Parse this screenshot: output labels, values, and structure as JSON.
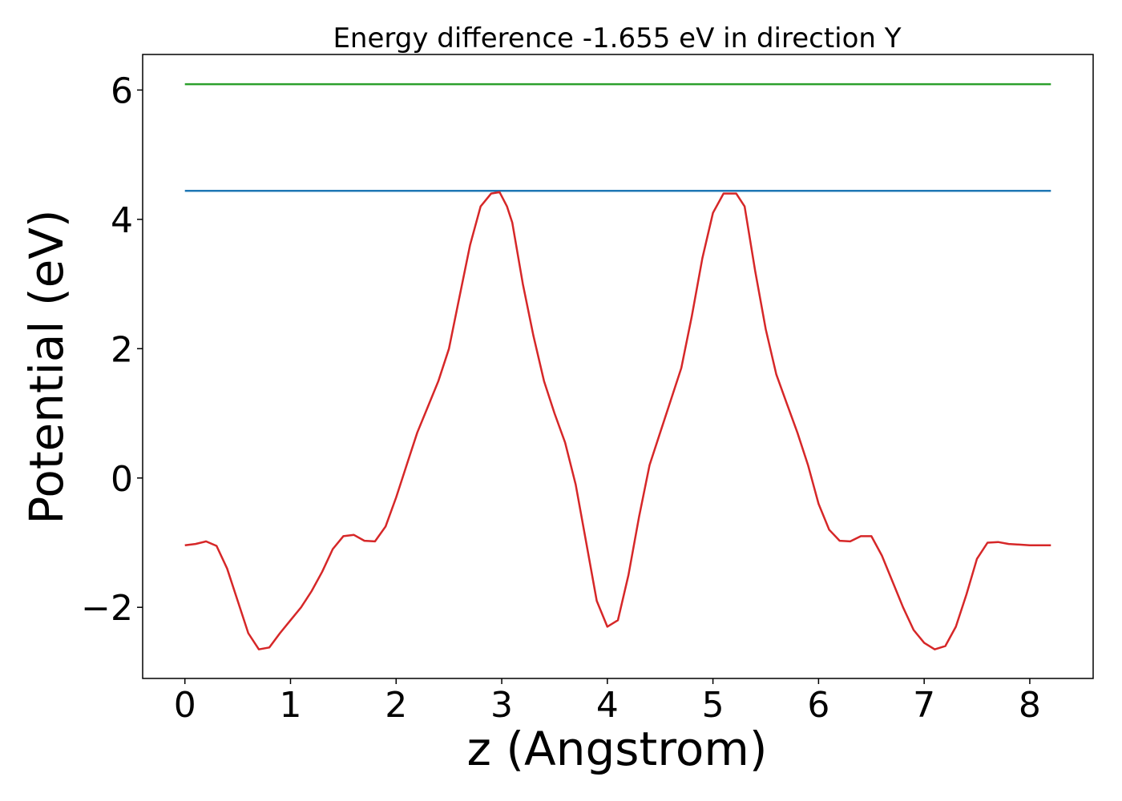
{
  "chart_data": {
    "type": "line",
    "title": "Energy difference -1.655 eV in direction Y",
    "xlabel": "z (Angstrom)",
    "ylabel": "Potential (eV)",
    "xlim": [
      -0.4,
      8.6
    ],
    "ylim": [
      -3.1,
      6.55
    ],
    "xticks": [
      0,
      1,
      2,
      3,
      4,
      5,
      6,
      7,
      8
    ],
    "xtick_labels": [
      "0",
      "1",
      "2",
      "3",
      "4",
      "5",
      "6",
      "7",
      "8"
    ],
    "yticks": [
      -2,
      0,
      2,
      4,
      6
    ],
    "ytick_labels": [
      "−2",
      "0",
      "2",
      "4",
      "6"
    ],
    "grid": false,
    "legend": "none",
    "series": [
      {
        "color": "#2ca02c",
        "x": [
          0.0,
          8.2
        ],
        "y": [
          6.09,
          6.09
        ]
      },
      {
        "color": "#1f77b4",
        "x": [
          0.0,
          8.2
        ],
        "y": [
          4.44,
          4.44
        ]
      },
      {
        "color": "#d62728",
        "x": [
          0.0,
          0.1,
          0.2,
          0.3,
          0.4,
          0.5,
          0.6,
          0.7,
          0.8,
          0.9,
          1.0,
          1.1,
          1.2,
          1.3,
          1.4,
          1.5,
          1.6,
          1.7,
          1.8,
          1.9,
          2.0,
          2.1,
          2.2,
          2.3,
          2.4,
          2.5,
          2.6,
          2.7,
          2.8,
          2.9,
          2.98,
          3.05,
          3.1,
          3.2,
          3.3,
          3.4,
          3.5,
          3.6,
          3.7,
          3.8,
          3.9,
          4.0,
          4.1,
          4.2,
          4.3,
          4.4,
          4.5,
          4.6,
          4.7,
          4.8,
          4.9,
          5.0,
          5.1,
          5.22,
          5.3,
          5.4,
          5.5,
          5.6,
          5.7,
          5.8,
          5.9,
          6.0,
          6.1,
          6.2,
          6.3,
          6.4,
          6.5,
          6.6,
          6.7,
          6.8,
          6.9,
          7.0,
          7.1,
          7.2,
          7.3,
          7.4,
          7.5,
          7.6,
          7.7,
          7.8,
          7.9,
          8.0,
          8.1,
          8.2
        ],
        "y": [
          -1.04,
          -1.02,
          -0.98,
          -1.05,
          -1.4,
          -1.9,
          -2.4,
          -2.65,
          -2.62,
          -2.4,
          -2.2,
          -2.0,
          -1.75,
          -1.45,
          -1.1,
          -0.9,
          -0.88,
          -0.97,
          -0.98,
          -0.75,
          -0.3,
          0.2,
          0.7,
          1.1,
          1.5,
          2.0,
          2.8,
          3.6,
          4.2,
          4.4,
          4.42,
          4.2,
          3.95,
          3.0,
          2.2,
          1.5,
          1.0,
          0.55,
          -0.1,
          -1.0,
          -1.9,
          -2.3,
          -2.2,
          -1.5,
          -0.6,
          0.2,
          0.7,
          1.2,
          1.7,
          2.5,
          3.4,
          4.1,
          4.4,
          4.4,
          4.2,
          3.2,
          2.3,
          1.6,
          1.15,
          0.7,
          0.2,
          -0.4,
          -0.8,
          -0.97,
          -0.98,
          -0.9,
          -0.9,
          -1.2,
          -1.6,
          -2.0,
          -2.35,
          -2.55,
          -2.65,
          -2.6,
          -2.3,
          -1.8,
          -1.25,
          -1.0,
          -0.99,
          -1.02,
          -1.03,
          -1.04,
          -1.04,
          -1.04
        ]
      }
    ]
  }
}
